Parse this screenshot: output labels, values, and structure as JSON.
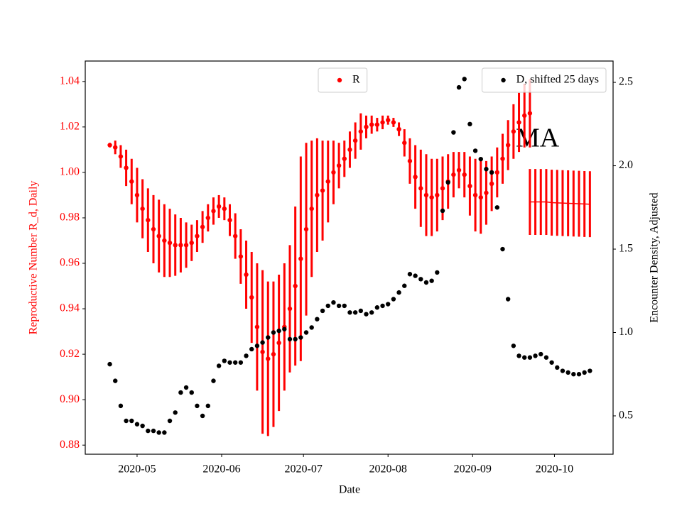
{
  "chart_data": {
    "type": "errorbar-scatter",
    "x_label": "Date",
    "y_label": "Reproductive Number R_d, Daily",
    "y2_label": "Encounter Density, Adjusted",
    "annotation": "MA",
    "xlim": [
      -19,
      174.5
    ],
    "xticks": [
      {
        "value": 0,
        "label": "2020-05"
      },
      {
        "value": 31,
        "label": "2020-06"
      },
      {
        "value": 61,
        "label": "2020-07"
      },
      {
        "value": 92,
        "label": "2020-08"
      },
      {
        "value": 123,
        "label": "2020-09"
      },
      {
        "value": 153,
        "label": "2020-10"
      }
    ],
    "ylim": [
      0.876,
      1.049
    ],
    "yticks": [
      0.88,
      {
        "value": 0.9,
        "label": "0.90"
      },
      0.92,
      0.94,
      0.96,
      0.98,
      {
        "value": 1,
        "label": "1.00"
      },
      1.02,
      1.04
    ],
    "y_color": "#ff0000",
    "y2lim": [
      0.27,
      2.628
    ],
    "y2ticks": [
      0.5,
      {
        "value": 1,
        "label": "1.0"
      },
      1.5,
      {
        "value": 2,
        "label": "2.0"
      },
      2.5
    ],
    "series": [
      {
        "name": "R",
        "color": "#ff0000",
        "legend": "upper center",
        "x": [
          -10,
          -8,
          -6,
          -4,
          -2,
          0,
          2,
          4,
          6,
          8,
          10,
          12,
          14,
          16,
          18,
          20,
          22,
          24,
          26,
          28,
          30,
          32,
          34,
          36,
          38,
          40,
          42,
          44,
          46,
          48,
          50,
          52,
          54,
          56,
          58,
          60,
          62,
          64,
          66,
          68,
          70,
          72,
          74,
          76,
          78,
          80,
          82,
          84,
          86,
          88,
          90,
          92,
          94,
          96,
          98,
          100,
          102,
          104,
          106,
          108,
          110,
          112,
          114,
          116,
          118,
          120,
          122,
          124,
          126,
          128,
          130,
          132,
          134,
          136,
          138,
          140,
          142,
          144
        ],
        "values": [
          1.012,
          1.011,
          1.007,
          1.002,
          0.996,
          0.99,
          0.984,
          0.979,
          0.975,
          0.972,
          0.97,
          0.969,
          0.968,
          0.968,
          0.968,
          0.969,
          0.972,
          0.976,
          0.98,
          0.983,
          0.985,
          0.984,
          0.979,
          0.972,
          0.963,
          0.955,
          0.945,
          0.932,
          0.921,
          0.918,
          0.92,
          0.925,
          0.932,
          0.94,
          0.95,
          0.962,
          0.975,
          0.984,
          0.99,
          0.992,
          0.996,
          1.0,
          1.003,
          1.006,
          1.01,
          1.014,
          1.018,
          1.02,
          1.021,
          1.021,
          1.022,
          1.023,
          1.022,
          1.019,
          1.013,
          1.005,
          0.998,
          0.993,
          0.99,
          0.989,
          0.99,
          0.993,
          0.996,
          0.999,
          1.001,
          0.999,
          0.994,
          0.99,
          0.989,
          0.991,
          0.995,
          1.0,
          1.006,
          1.012,
          1.018,
          1.022,
          1.025,
          1.026
        ],
        "errors": [
          0.001,
          0.003,
          0.005,
          0.008,
          0.01,
          0.012,
          0.013,
          0.014,
          0.015,
          0.016,
          0.016,
          0.015,
          0.0135,
          0.012,
          0.01,
          0.008,
          0.007,
          0.007,
          0.006,
          0.006,
          0.005,
          0.005,
          0.007,
          0.01,
          0.012,
          0.015,
          0.02,
          0.028,
          0.036,
          0.034,
          0.032,
          0.03,
          0.028,
          0.028,
          0.035,
          0.045,
          0.038,
          0.03,
          0.025,
          0.022,
          0.018,
          0.014,
          0.01,
          0.008,
          0.008,
          0.008,
          0.008,
          0.005,
          0.004,
          0.003,
          0.003,
          0.002,
          0.002,
          0.003,
          0.006,
          0.01,
          0.014,
          0.017,
          0.018,
          0.017,
          0.016,
          0.014,
          0.012,
          0.01,
          0.008,
          0.01,
          0.013,
          0.016,
          0.016,
          0.014,
          0.012,
          0.011,
          0.011,
          0.011,
          0.012,
          0.013,
          0.014,
          0.015
        ]
      },
      {
        "color": "#ff0000",
        "style": "line",
        "x": [
          144,
          146,
          148,
          150,
          152,
          154,
          156,
          158,
          160,
          162,
          164,
          166
        ],
        "values": [
          0.987,
          0.987,
          0.987,
          0.987,
          0.9867,
          0.9866,
          0.9865,
          0.9864,
          0.9863,
          0.9862,
          0.9861,
          0.986
        ],
        "errors": [
          0.0145,
          0.0145,
          0.0145,
          0.0145,
          0.0145,
          0.0145,
          0.0145,
          0.0145,
          0.0145,
          0.0145,
          0.0145,
          0.0145
        ]
      },
      {
        "name": "D, shifted 25 days",
        "color": "#000000",
        "axis": "y2",
        "legend": "upper right",
        "x": [
          -10,
          -8,
          -6,
          -4,
          -2,
          0,
          2,
          4,
          6,
          8,
          10,
          12,
          14,
          16,
          18,
          20,
          22,
          24,
          26,
          28,
          30,
          32,
          34,
          36,
          38,
          40,
          42,
          44,
          46,
          48,
          50,
          52,
          54,
          56,
          58,
          60,
          62,
          64,
          66,
          68,
          70,
          72,
          74,
          76,
          78,
          80,
          82,
          84,
          86,
          88,
          90,
          92,
          94,
          96,
          98,
          100,
          102,
          104,
          106,
          108,
          110,
          112,
          114,
          116,
          118,
          120,
          122,
          124,
          126,
          128,
          130,
          132,
          134,
          136,
          138,
          140,
          142,
          144,
          146,
          148,
          150,
          152,
          154,
          156,
          158,
          160,
          162,
          164,
          166
        ],
        "values": [
          0.81,
          0.71,
          0.56,
          0.47,
          0.47,
          0.45,
          0.44,
          0.41,
          0.41,
          0.4,
          0.4,
          0.47,
          0.52,
          0.64,
          0.67,
          0.64,
          0.56,
          0.5,
          0.56,
          0.71,
          0.8,
          0.83,
          0.82,
          0.82,
          0.82,
          0.86,
          0.9,
          0.92,
          0.94,
          0.97,
          1.0,
          1.01,
          1.02,
          0.96,
          0.96,
          0.97,
          1.0,
          1.03,
          1.08,
          1.13,
          1.16,
          1.18,
          1.16,
          1.16,
          1.12,
          1.12,
          1.13,
          1.11,
          1.12,
          1.15,
          1.16,
          1.17,
          1.2,
          1.24,
          1.28,
          1.35,
          1.34,
          1.32,
          1.3,
          1.31,
          1.36,
          1.73,
          1.9,
          2.2,
          2.47,
          2.52,
          2.25,
          2.09,
          2.04,
          1.98,
          1.96,
          1.75,
          1.5,
          1.2,
          0.92,
          0.86,
          0.85,
          0.85,
          0.86,
          0.87,
          0.85,
          0.82,
          0.79,
          0.77,
          0.76,
          0.75,
          0.75,
          0.76,
          0.77
        ]
      }
    ]
  }
}
